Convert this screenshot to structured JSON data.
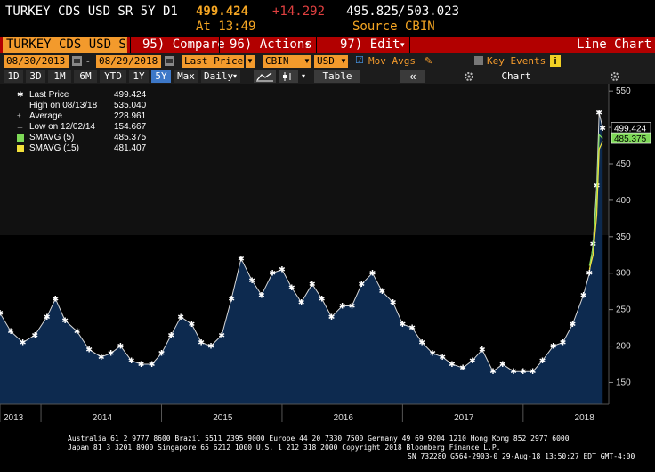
{
  "header": {
    "ticker": "TURKEY CDS USD SR 5Y D1",
    "last": "499.424",
    "change": "+14.292",
    "bid_ask_bid": "495.825",
    "bid_ask_sep": "/",
    "bid_ask_ask": "503.023",
    "time_label": "At 13:49",
    "source_label": "Source CBIN"
  },
  "menubar": {
    "security": "TURKEY CDS USD SR",
    "compare": "95) Compare",
    "actions": "96) Actions",
    "edit": "97) Edit",
    "line_chart": "Line Chart"
  },
  "toolbar": {
    "start_date": "08/30/2013",
    "end_date": "08/29/2018",
    "field": "Last Price",
    "source": "CBIN",
    "currency": "USD",
    "mov_avgs_label": "Mov Avgs",
    "key_events_label": "Key Events",
    "ranges": [
      "1D",
      "3D",
      "1M",
      "6M",
      "YTD",
      "1Y",
      "5Y",
      "Max"
    ],
    "selected_range": "5Y",
    "period": "Daily",
    "table_label": "Table",
    "chart_content_label": "Chart Content"
  },
  "legend": [
    {
      "name": "Last Price",
      "value": "499.424"
    },
    {
      "name": "High on 08/13/18",
      "value": "535.040"
    },
    {
      "name": "Average",
      "value": "228.961"
    },
    {
      "name": "Low on 12/02/14",
      "value": "154.667"
    },
    {
      "name": "SMAVG (5)",
      "value": "485.375"
    },
    {
      "name": "SMAVG (15)",
      "value": "481.407"
    }
  ],
  "colors": {
    "accent": "#f39a2c",
    "menubar": "#b20000",
    "area_fill": "#0d2a4f",
    "sma5": "#7ed957",
    "sma15": "#f2e03a",
    "last_price_tag": "#ffffff",
    "sma_tag": "#7ed957"
  },
  "chart_data": {
    "type": "area",
    "title": "TURKEY CDS USD SR 5Y D1",
    "x_ticks": [
      "2013",
      "2014",
      "2015",
      "2016",
      "2017",
      "2018"
    ],
    "y_ticks": [
      150,
      200,
      250,
      300,
      350,
      400,
      450,
      500,
      550
    ],
    "ylim": [
      120,
      560
    ],
    "y_side": "right",
    "grid": false,
    "legend_position": "top-left",
    "price_tags": [
      "499.424",
      "485.375"
    ],
    "series": [
      {
        "name": "Last Price",
        "x": [
          2013.66,
          2013.75,
          2013.85,
          2013.95,
          2014.05,
          2014.12,
          2014.2,
          2014.3,
          2014.4,
          2014.5,
          2014.58,
          2014.66,
          2014.75,
          2014.83,
          2014.92,
          2015.0,
          2015.08,
          2015.16,
          2015.25,
          2015.33,
          2015.41,
          2015.5,
          2015.58,
          2015.66,
          2015.75,
          2015.83,
          2015.92,
          2016.0,
          2016.08,
          2016.16,
          2016.25,
          2016.33,
          2016.41,
          2016.5,
          2016.58,
          2016.66,
          2016.75,
          2016.83,
          2016.92,
          2017.0,
          2017.08,
          2017.16,
          2017.25,
          2017.33,
          2017.41,
          2017.5,
          2017.58,
          2017.66,
          2017.75,
          2017.83,
          2017.92,
          2018.0,
          2018.08,
          2018.16,
          2018.25,
          2018.33,
          2018.41,
          2018.5,
          2018.55,
          2018.58,
          2018.61,
          2018.63,
          2018.66
        ],
        "y": [
          245,
          220,
          205,
          215,
          240,
          265,
          235,
          220,
          195,
          185,
          190,
          200,
          180,
          175,
          175,
          190,
          215,
          240,
          230,
          205,
          200,
          215,
          265,
          320,
          290,
          270,
          300,
          305,
          280,
          260,
          285,
          265,
          240,
          255,
          255,
          285,
          300,
          275,
          260,
          230,
          225,
          205,
          190,
          185,
          175,
          170,
          180,
          195,
          165,
          175,
          165,
          165,
          165,
          180,
          200,
          205,
          230,
          270,
          300,
          340,
          420,
          520,
          499
        ]
      },
      {
        "name": "SMAVG (5)",
        "x": [
          2018.55,
          2018.58,
          2018.61,
          2018.63,
          2018.66
        ],
        "y": [
          310,
          335,
          405,
          490,
          485
        ]
      },
      {
        "name": "SMAVG (15)",
        "x": [
          2018.55,
          2018.58,
          2018.61,
          2018.63,
          2018.66
        ],
        "y": [
          305,
          325,
          380,
          470,
          481
        ]
      }
    ]
  },
  "footer": {
    "line1": "Australia 61 2 9777 8600 Brazil 5511 2395 9000 Europe 44 20 7330 7500 Germany 49 69 9204 1210 Hong Kong 852 2977 6000",
    "line2": "Japan 81 3 3201 8900          Singapore 65 6212 1000          U.S. 1 212 318 2000          Copyright 2018 Bloomberg Finance L.P.",
    "line3": "SN 732280 G564-2903-0 29-Aug-18 13:50:27 EDT  GMT-4:00"
  }
}
